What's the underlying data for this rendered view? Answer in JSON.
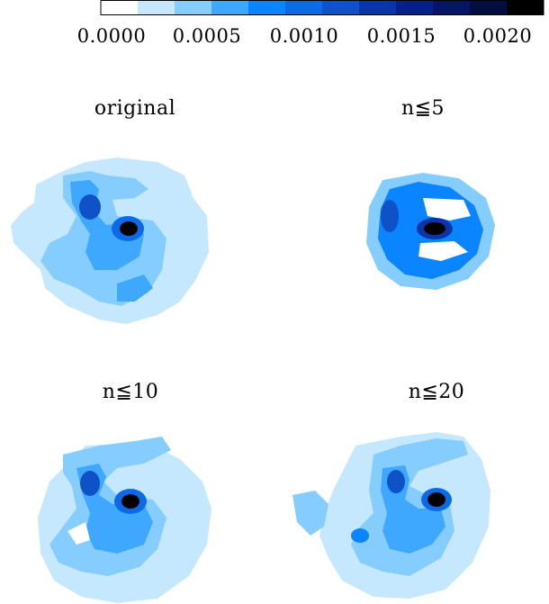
{
  "chart_data": {
    "type": "heatmap",
    "colorbar": {
      "ticks": [
        "0.0000",
        "0.0005",
        "0.0010",
        "0.0015",
        "0.0020"
      ],
      "range": [
        0.0,
        0.0025
      ],
      "colors": [
        "#ffffff",
        "#c6e8ff",
        "#85ccff",
        "#3ea8ff",
        "#0a84ff",
        "#0d6ae6",
        "#0f52c8",
        "#0a35a8",
        "#06208a",
        "#041566",
        "#020d40",
        "#000000"
      ]
    },
    "panels": [
      {
        "title": "original"
      },
      {
        "title": "n≦5"
      },
      {
        "title": "n≦10"
      },
      {
        "title": "n≦20"
      }
    ]
  }
}
